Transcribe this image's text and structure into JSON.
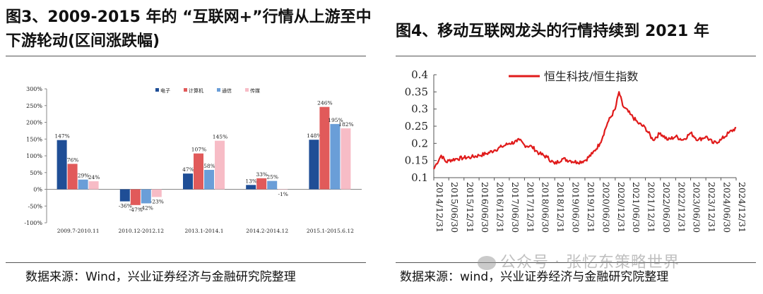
{
  "left": {
    "title_line1": "图3、2009-2015 年的 “互联网+”行情从上游至中",
    "title_line2": "下游轮动(区间涨跌幅)",
    "source": "数据来源：Wind，兴业证券经济与金融研究院整理"
  },
  "right": {
    "title": "图4、移动互联网龙头的行情持续到 2021 年",
    "source": "数据来源：wind，兴业证券经济与金融研究院整理"
  },
  "watermark": {
    "text": "公众号 · 张忆东策略世界",
    "icon": "wechat-icon"
  },
  "colors": {
    "series": [
      "#1f4e96",
      "#e15a5a",
      "#6a9ed8",
      "#f7bcc6"
    ],
    "line": "#e01b1b"
  },
  "chart_data": [
    {
      "type": "bar",
      "categories": [
        "2009.7-2010.11",
        "2010.12-2012.12",
        "2013.1-2014.1",
        "2014.2-2014.12",
        "2015.1-2015.6.12"
      ],
      "series": [
        {
          "name": "电子",
          "values": [
            147,
            -36,
            47,
            13,
            148
          ],
          "labels": [
            "147%",
            "-36%",
            "47%",
            "13%",
            "148%"
          ]
        },
        {
          "name": "计算机",
          "values": [
            76,
            -47,
            107,
            33,
            246
          ],
          "labels": [
            "76%",
            "-47%",
            "107%",
            "33%",
            "246%"
          ]
        },
        {
          "name": "通信",
          "values": [
            29,
            -42,
            58,
            25,
            195
          ],
          "labels": [
            "29%",
            "-42%",
            "58%",
            "25%",
            "195%"
          ]
        },
        {
          "name": "传媒",
          "values": [
            24,
            -23,
            145,
            -1,
            182
          ],
          "labels": [
            "24%",
            "-23%",
            "145%",
            "-1%",
            "182%"
          ]
        }
      ],
      "ylim": [
        -100,
        300
      ],
      "yticks": [
        "-100%",
        "-50%",
        "0%",
        "50%",
        "100%",
        "150%",
        "200%",
        "250%",
        "300%"
      ],
      "legend": "top-right",
      "grid": false
    },
    {
      "type": "line",
      "series": [
        {
          "name": "恒生科技/恒生指数",
          "x": [
            "2014/12/31",
            "2015/01/31",
            "2015/03/31",
            "2015/05/31",
            "2015/06/30",
            "2015/09/30",
            "2015/12/31",
            "2016/03/31",
            "2016/06/30",
            "2016/09/30",
            "2016/12/31",
            "2017/03/31",
            "2017/06/30",
            "2017/09/30",
            "2017/10/31",
            "2017/12/31",
            "2018/03/31",
            "2018/06/30",
            "2018/09/30",
            "2018/12/31",
            "2019/03/31",
            "2019/06/30",
            "2019/09/30",
            "2019/12/31",
            "2020/03/31",
            "2020/06/30",
            "2020/09/30",
            "2020/12/31",
            "2021/02/15",
            "2021/03/31",
            "2021/06/30",
            "2021/09/30",
            "2021/12/31",
            "2022/03/31",
            "2022/06/30",
            "2022/09/30",
            "2022/12/31",
            "2023/03/31",
            "2023/06/30",
            "2023/09/30",
            "2023/12/31",
            "2024/03/31",
            "2024/06/30",
            "2024/09/30",
            "2024/12/31"
          ],
          "y": [
            0.125,
            0.14,
            0.165,
            0.145,
            0.15,
            0.155,
            0.158,
            0.16,
            0.165,
            0.17,
            0.18,
            0.19,
            0.2,
            0.205,
            0.21,
            0.195,
            0.19,
            0.17,
            0.16,
            0.14,
            0.155,
            0.15,
            0.145,
            0.15,
            0.17,
            0.2,
            0.26,
            0.3,
            0.35,
            0.31,
            0.285,
            0.26,
            0.245,
            0.21,
            0.23,
            0.21,
            0.22,
            0.21,
            0.23,
            0.21,
            0.22,
            0.2,
            0.21,
            0.23,
            0.245
          ]
        }
      ],
      "ylim": [
        0.1,
        0.4
      ],
      "yticks": [
        "0.1",
        "0.15",
        "0.2",
        "0.25",
        "0.3",
        "0.35",
        "0.4"
      ],
      "xticks": [
        "2014/12/31",
        "2015/06/30",
        "2015/12/31",
        "2016/06/30",
        "2016/12/31",
        "2017/06/30",
        "2017/12/31",
        "2018/06/30",
        "2018/12/31",
        "2019/06/30",
        "2019/12/31",
        "2020/06/30",
        "2020/12/31",
        "2021/06/30",
        "2021/12/31",
        "2022/06/30",
        "2022/12/31",
        "2023/06/30",
        "2023/12/31",
        "2024/06/30",
        "2024/12/31"
      ],
      "legend": "top-left",
      "grid": false
    }
  ]
}
